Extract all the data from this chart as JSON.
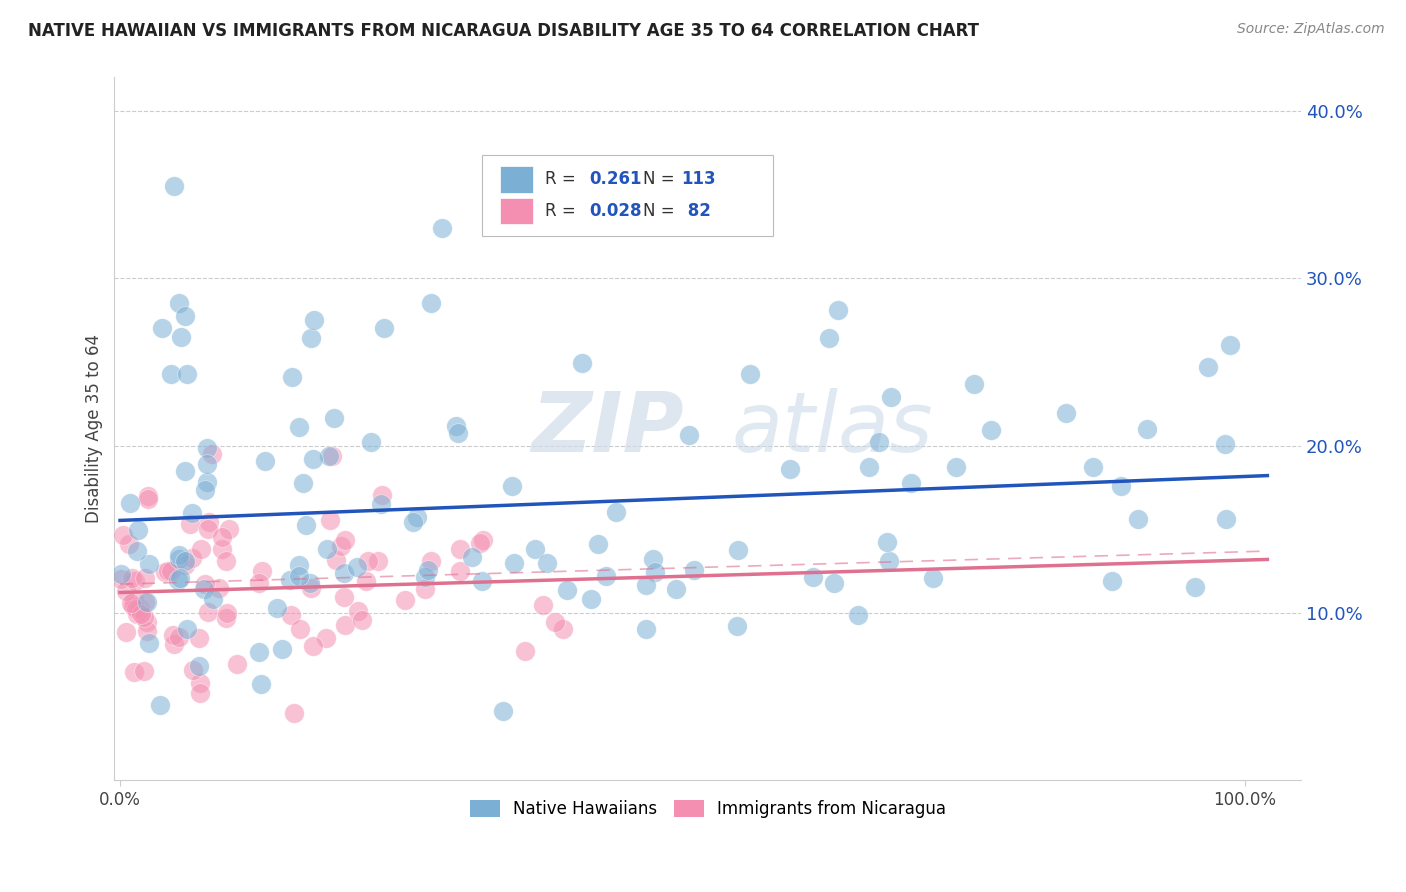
{
  "title": "NATIVE HAWAIIAN VS IMMIGRANTS FROM NICARAGUA DISABILITY AGE 35 TO 64 CORRELATION CHART",
  "source": "Source: ZipAtlas.com",
  "ylabel": "Disability Age 35 to 64",
  "ylim": [
    0.0,
    0.42
  ],
  "xlim": [
    -0.005,
    1.05
  ],
  "yticks": [
    0.1,
    0.2,
    0.3,
    0.4
  ],
  "ytick_labels": [
    "10.0%",
    "20.0%",
    "30.0%",
    "40.0%"
  ],
  "blue_color": "#7bafd4",
  "pink_color": "#f48fb1",
  "blue_line_color": "#2255bb",
  "pink_line_color": "#e07090",
  "background_color": "#ffffff",
  "grid_color": "#cccccc",
  "watermark": "ZIPatlas",
  "R_blue": 0.261,
  "N_blue": 113,
  "R_pink": 0.028,
  "N_pink": 82,
  "seed": 12345
}
